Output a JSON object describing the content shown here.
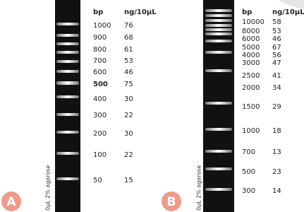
{
  "panels": [
    {
      "label": "A",
      "gel_label": "0µL 2% agarose",
      "headers": [
        "bp",
        "ng/10µL"
      ],
      "rows": [
        [
          "1000",
          "76"
        ],
        [
          "900",
          "68"
        ],
        [
          "800",
          "61"
        ],
        [
          "700",
          "53"
        ],
        [
          "600",
          "46"
        ],
        [
          "500",
          "75"
        ],
        [
          "400",
          "30"
        ],
        [
          "300",
          "22"
        ],
        [
          "200",
          "30"
        ],
        [
          "100",
          "22"
        ],
        [
          "50",
          "15"
        ]
      ]
    },
    {
      "label": "B",
      "gel_label": "0µL 2% agarose",
      "headers": [
        "bp",
        "ng/10µL"
      ],
      "rows": [
        [
          "10000",
          "58"
        ],
        [
          "8000",
          "53"
        ],
        [
          "6000",
          "46"
        ],
        [
          "5000",
          "67"
        ],
        [
          "4000",
          "56"
        ],
        [
          "3000",
          "47"
        ],
        [
          "2500",
          "41"
        ],
        [
          "2000",
          "34"
        ],
        [
          "1500",
          "29"
        ],
        [
          "1000",
          "18"
        ],
        [
          "700",
          "13"
        ],
        [
          "500",
          "23"
        ],
        [
          "300",
          "14"
        ]
      ]
    }
  ]
}
